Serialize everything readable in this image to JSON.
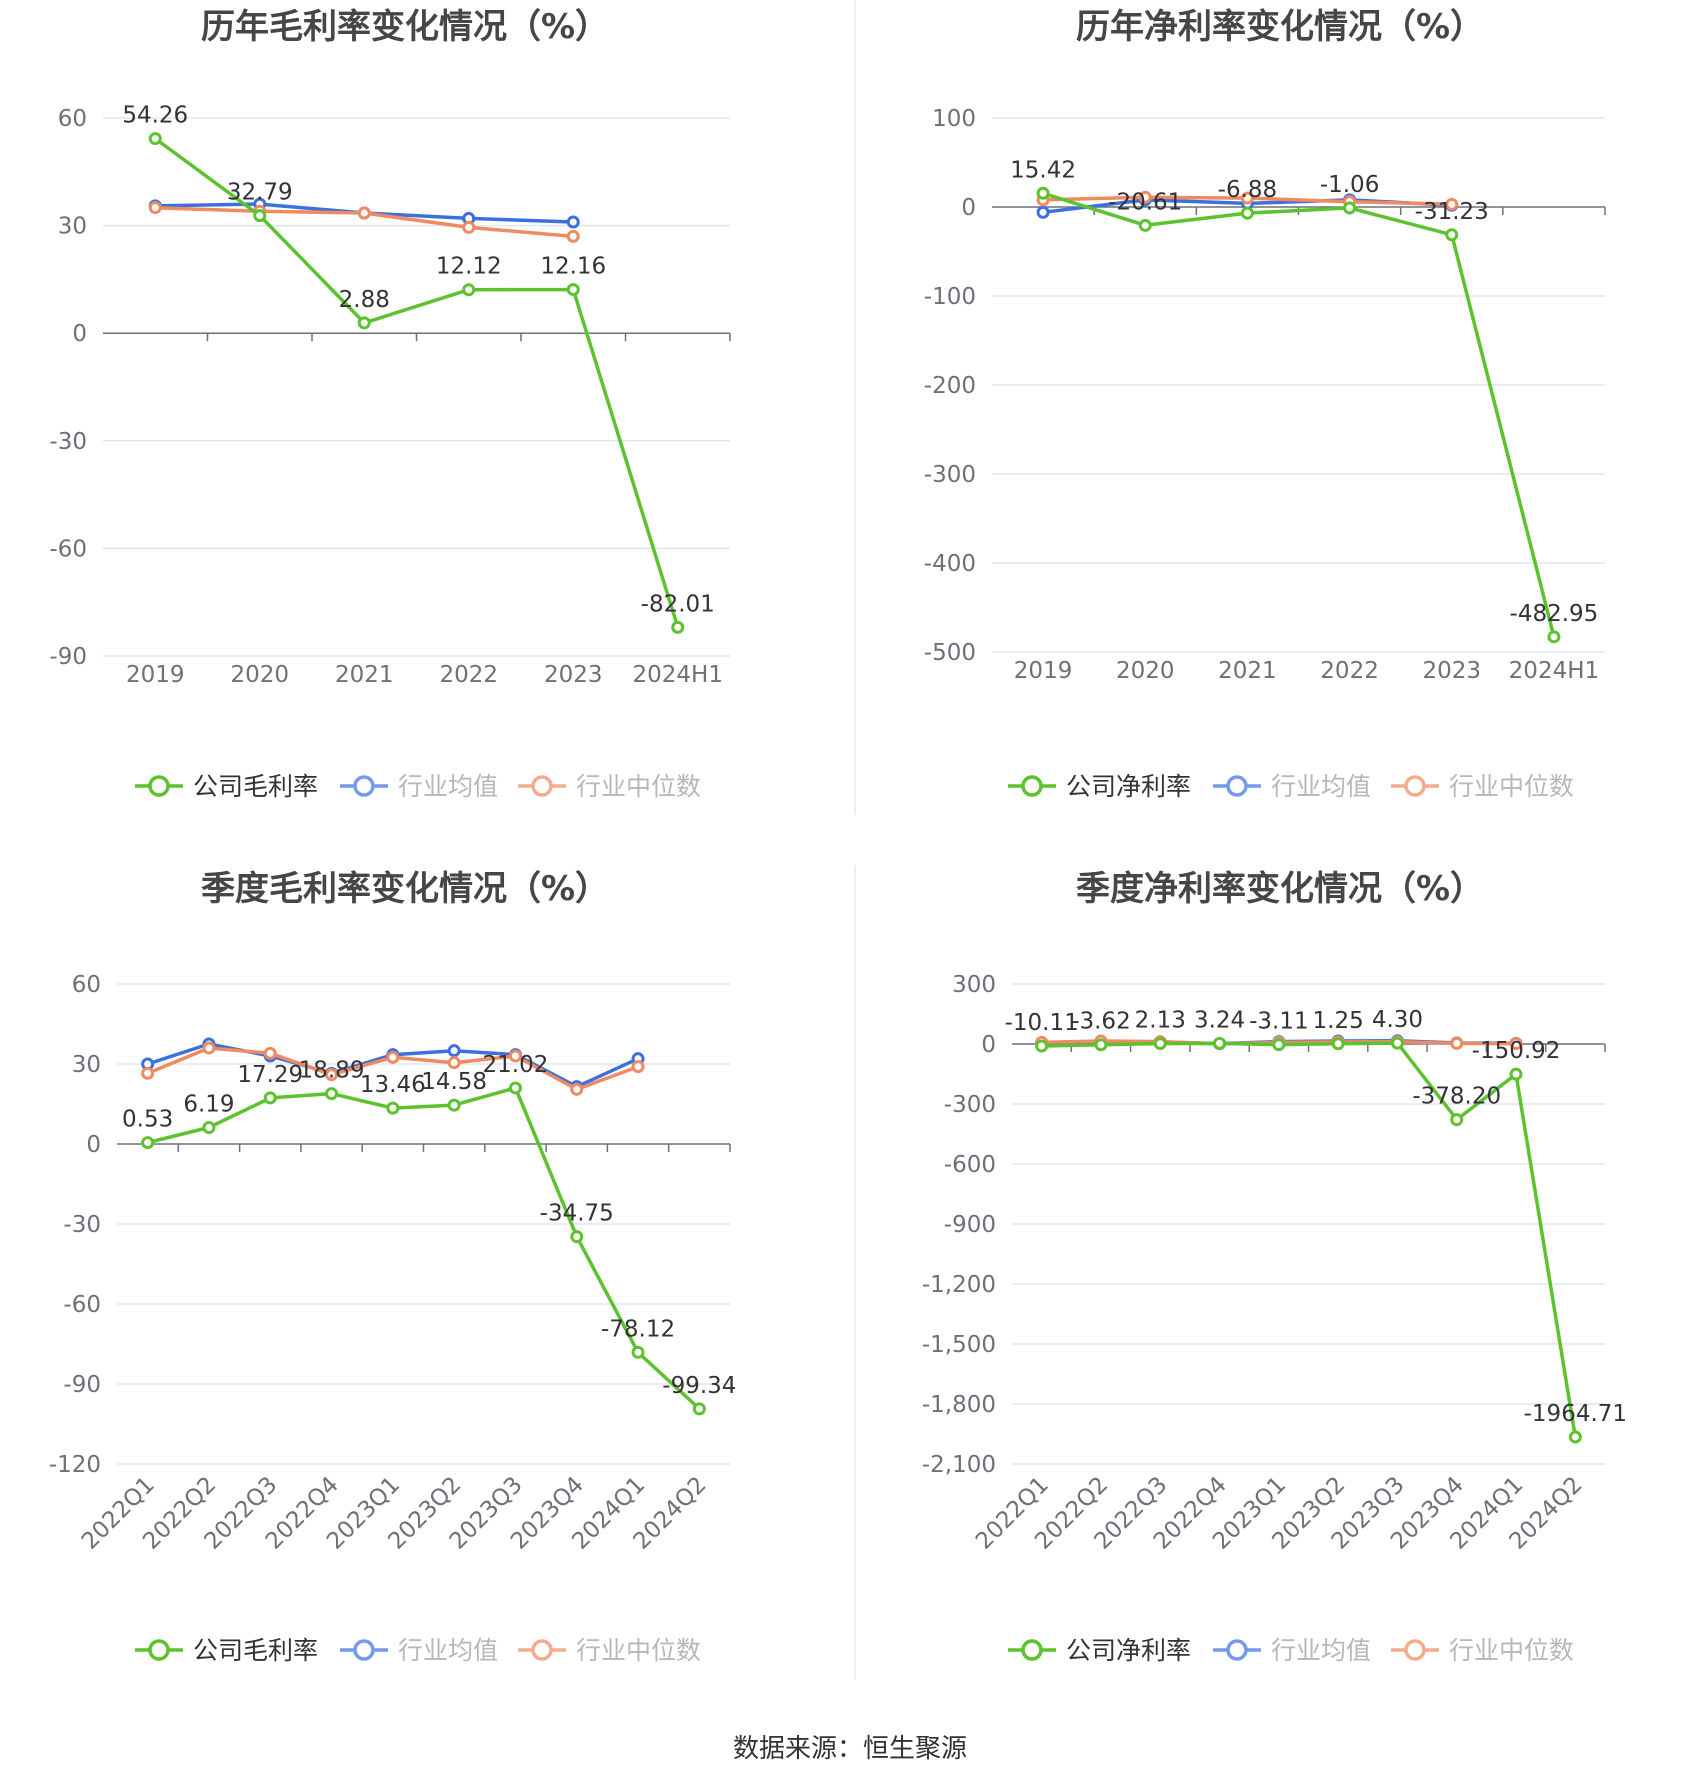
{
  "colors": {
    "company": "#5cc22e",
    "industry_avg": "#3b70e0",
    "industry_median": "#f08a60",
    "grid": "#e0e6f1",
    "axis": "#6e7079",
    "tick_text": "#6e7079",
    "label_text": "#333333",
    "title_text": "#464646",
    "legend_text": "#333333",
    "legend_muted": "#999999",
    "divider": "#eeeeee"
  },
  "source": "数据来源：恒生聚源",
  "chart_data": [
    {
      "type": "line",
      "title": "历年毛利率变化情况（%）",
      "categories": [
        "2019",
        "2020",
        "2021",
        "2022",
        "2023",
        "2024H1"
      ],
      "ylim": [
        -90,
        60
      ],
      "yticks": [
        60,
        30,
        0,
        -30,
        -60,
        -90
      ],
      "ytick_labels": [
        "60",
        "30",
        "0",
        "-30",
        "-60",
        "-90"
      ],
      "rotate_x_labels": false,
      "grid": true,
      "legend_placement": "bottom",
      "series": [
        {
          "name": "公司毛利率",
          "key": "company",
          "values": [
            54.26,
            32.79,
            2.88,
            12.12,
            12.16,
            -82.01
          ],
          "labels": [
            "54.26",
            "32.79",
            "2.88",
            "12.12",
            "12.16",
            "-82.01"
          ]
        },
        {
          "name": "行业均值",
          "key": "industry_avg",
          "values": [
            35.5,
            36.0,
            33.5,
            32.0,
            31.0,
            null
          ]
        },
        {
          "name": "行业中位数",
          "key": "industry_median",
          "values": [
            35.0,
            34.0,
            33.5,
            29.5,
            27.0,
            null
          ]
        }
      ]
    },
    {
      "type": "line",
      "title": "历年净利率变化情况（%）",
      "categories": [
        "2019",
        "2020",
        "2021",
        "2022",
        "2023",
        "2024H1"
      ],
      "ylim": [
        -500,
        100
      ],
      "yticks": [
        100,
        0,
        -100,
        -200,
        -300,
        -400,
        -500
      ],
      "ytick_labels": [
        "100",
        "0",
        "-100",
        "-200",
        "-300",
        "-400",
        "-500"
      ],
      "rotate_x_labels": false,
      "grid": true,
      "legend_placement": "bottom",
      "series": [
        {
          "name": "公司净利率",
          "key": "company",
          "values": [
            15.42,
            -20.61,
            -6.88,
            -1.06,
            -31.23,
            -482.95
          ],
          "labels": [
            "15.42",
            "-20.61",
            "-6.88",
            "-1.06",
            "-31.23",
            "-482.95"
          ]
        },
        {
          "name": "行业均值",
          "key": "industry_avg",
          "values": [
            -6.0,
            8.0,
            4.0,
            8.0,
            2.0,
            null
          ]
        },
        {
          "name": "行业中位数",
          "key": "industry_median",
          "values": [
            8.0,
            11.0,
            10.0,
            6.0,
            3.0,
            null
          ]
        }
      ]
    },
    {
      "type": "line",
      "title": "季度毛利率变化情况（%）",
      "categories": [
        "2022Q1",
        "2022Q2",
        "2022Q3",
        "2022Q4",
        "2023Q1",
        "2023Q2",
        "2023Q3",
        "2023Q4",
        "2024Q1",
        "2024Q2"
      ],
      "ylim": [
        -120,
        60
      ],
      "yticks": [
        60,
        30,
        0,
        -30,
        -60,
        -90,
        -120
      ],
      "ytick_labels": [
        "60",
        "30",
        "0",
        "-30",
        "-60",
        "-90",
        "-120"
      ],
      "rotate_x_labels": true,
      "grid": true,
      "legend_placement": "bottom",
      "series": [
        {
          "name": "公司毛利率",
          "key": "company",
          "values": [
            0.53,
            6.19,
            17.29,
            18.89,
            13.46,
            14.58,
            21.02,
            -34.75,
            -78.12,
            -99.34
          ],
          "labels": [
            "0.53",
            "6.19",
            "17.29",
            "18.89",
            "13.46",
            "14.58",
            "21.02",
            "-34.75",
            "-78.12",
            "-99.34"
          ]
        },
        {
          "name": "行业均值",
          "key": "industry_avg",
          "values": [
            30.0,
            37.5,
            33.0,
            26.5,
            33.5,
            35.0,
            33.5,
            21.5,
            32.0,
            null
          ]
        },
        {
          "name": "行业中位数",
          "key": "industry_median",
          "values": [
            26.5,
            36.0,
            34.0,
            26.0,
            32.5,
            30.5,
            33.0,
            20.5,
            29.0,
            null
          ]
        }
      ]
    },
    {
      "type": "line",
      "title": "季度净利率变化情况（%）",
      "categories": [
        "2022Q1",
        "2022Q2",
        "2022Q3",
        "2022Q4",
        "2023Q1",
        "2023Q2",
        "2023Q3",
        "2023Q4",
        "2024Q1",
        "2024Q2"
      ],
      "ylim": [
        -2100,
        300
      ],
      "yticks": [
        300,
        0,
        -300,
        -600,
        -900,
        -1200,
        -1500,
        -1800,
        -2100
      ],
      "ytick_labels": [
        "300",
        "0",
        "-300",
        "-600",
        "-900",
        "-1,200",
        "-1,500",
        "-1,800",
        "-2,100"
      ],
      "rotate_x_labels": true,
      "grid": true,
      "legend_placement": "bottom",
      "series": [
        {
          "name": "公司净利率",
          "key": "company",
          "values": [
            -10.11,
            -3.62,
            2.13,
            3.24,
            -3.11,
            1.25,
            4.3,
            -378.2,
            -150.92,
            -1964.71
          ],
          "labels": [
            "-10.11",
            "-3.62",
            "2.13",
            "3.24",
            "-3.11",
            "1.25",
            "4.30",
            "-378.20",
            "-150.92",
            "-1964.71"
          ]
        },
        {
          "name": "行业均值",
          "key": "industry_avg",
          "values": [
            5.0,
            12.0,
            10.0,
            2.0,
            12.0,
            15.0,
            16.0,
            5.0,
            3.0,
            null
          ]
        },
        {
          "name": "行业中位数",
          "key": "industry_median",
          "values": [
            8.0,
            15.0,
            12.0,
            1.0,
            8.0,
            10.0,
            11.0,
            3.0,
            2.0,
            null
          ]
        }
      ]
    }
  ]
}
